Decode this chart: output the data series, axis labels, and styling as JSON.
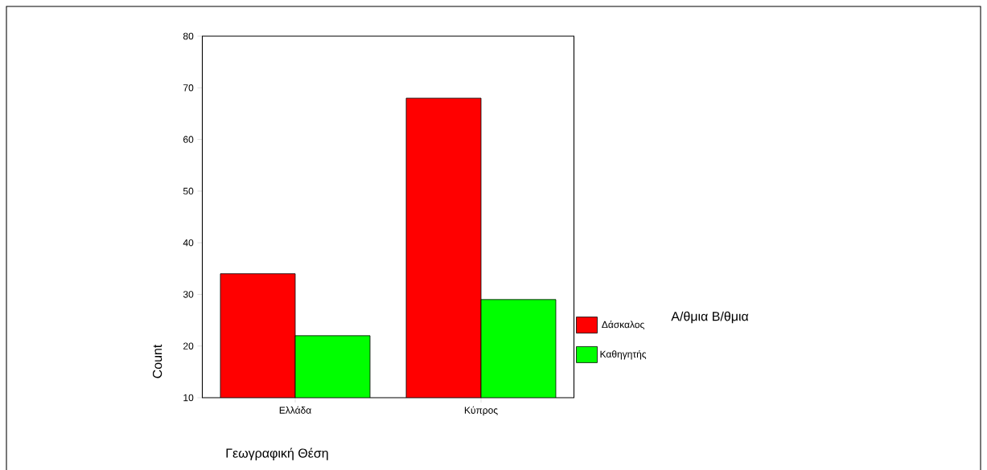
{
  "chart_data": {
    "type": "bar",
    "xlabel": "Γεωγραφική Θέση",
    "ylabel": "Count",
    "legend_title": "Α/θμια Β/θμια",
    "categories": [
      "Ελλάδα",
      "Κύπρος"
    ],
    "series": [
      {
        "name": "Δάσκαλος",
        "color": "#ff0000",
        "values": [
          34,
          68
        ]
      },
      {
        "name": "Καθηγητής",
        "color": "#00ff00",
        "values": [
          22,
          29
        ]
      }
    ],
    "ylim": [
      10,
      80
    ],
    "yticks": [
      10,
      20,
      30,
      40,
      50,
      60,
      70,
      80
    ],
    "grid": false,
    "legend": "right"
  }
}
